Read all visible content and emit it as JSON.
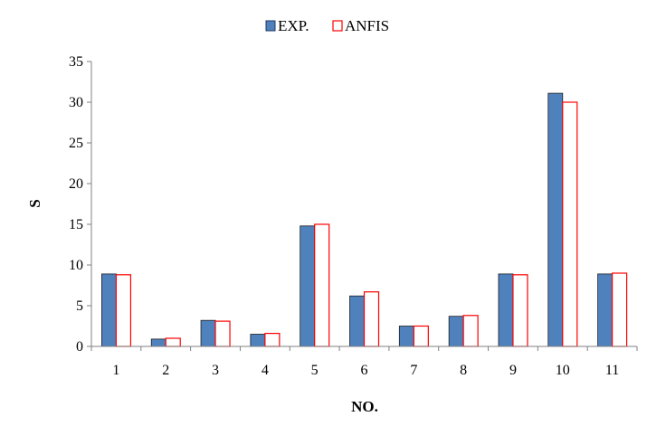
{
  "chart_data": {
    "type": "bar",
    "xlabel": "NO.",
    "ylabel": "S",
    "ylim": [
      0,
      35
    ],
    "yticks": [
      0,
      5,
      10,
      15,
      20,
      25,
      30,
      35
    ],
    "grid": false,
    "legend_position": "top-center",
    "categories": [
      "1",
      "2",
      "3",
      "4",
      "5",
      "6",
      "7",
      "8",
      "9",
      "10",
      "11"
    ],
    "series": [
      {
        "name": "EXP.",
        "color": "#4F81BD",
        "values": [
          8.9,
          0.9,
          3.2,
          1.5,
          14.8,
          6.2,
          2.5,
          3.7,
          8.9,
          31.1,
          8.9
        ]
      },
      {
        "name": "ANFIS",
        "color": "#FF0000",
        "values": [
          8.8,
          1.0,
          3.1,
          1.6,
          15.0,
          6.7,
          2.5,
          3.8,
          8.8,
          30.0,
          9.0
        ]
      }
    ]
  }
}
